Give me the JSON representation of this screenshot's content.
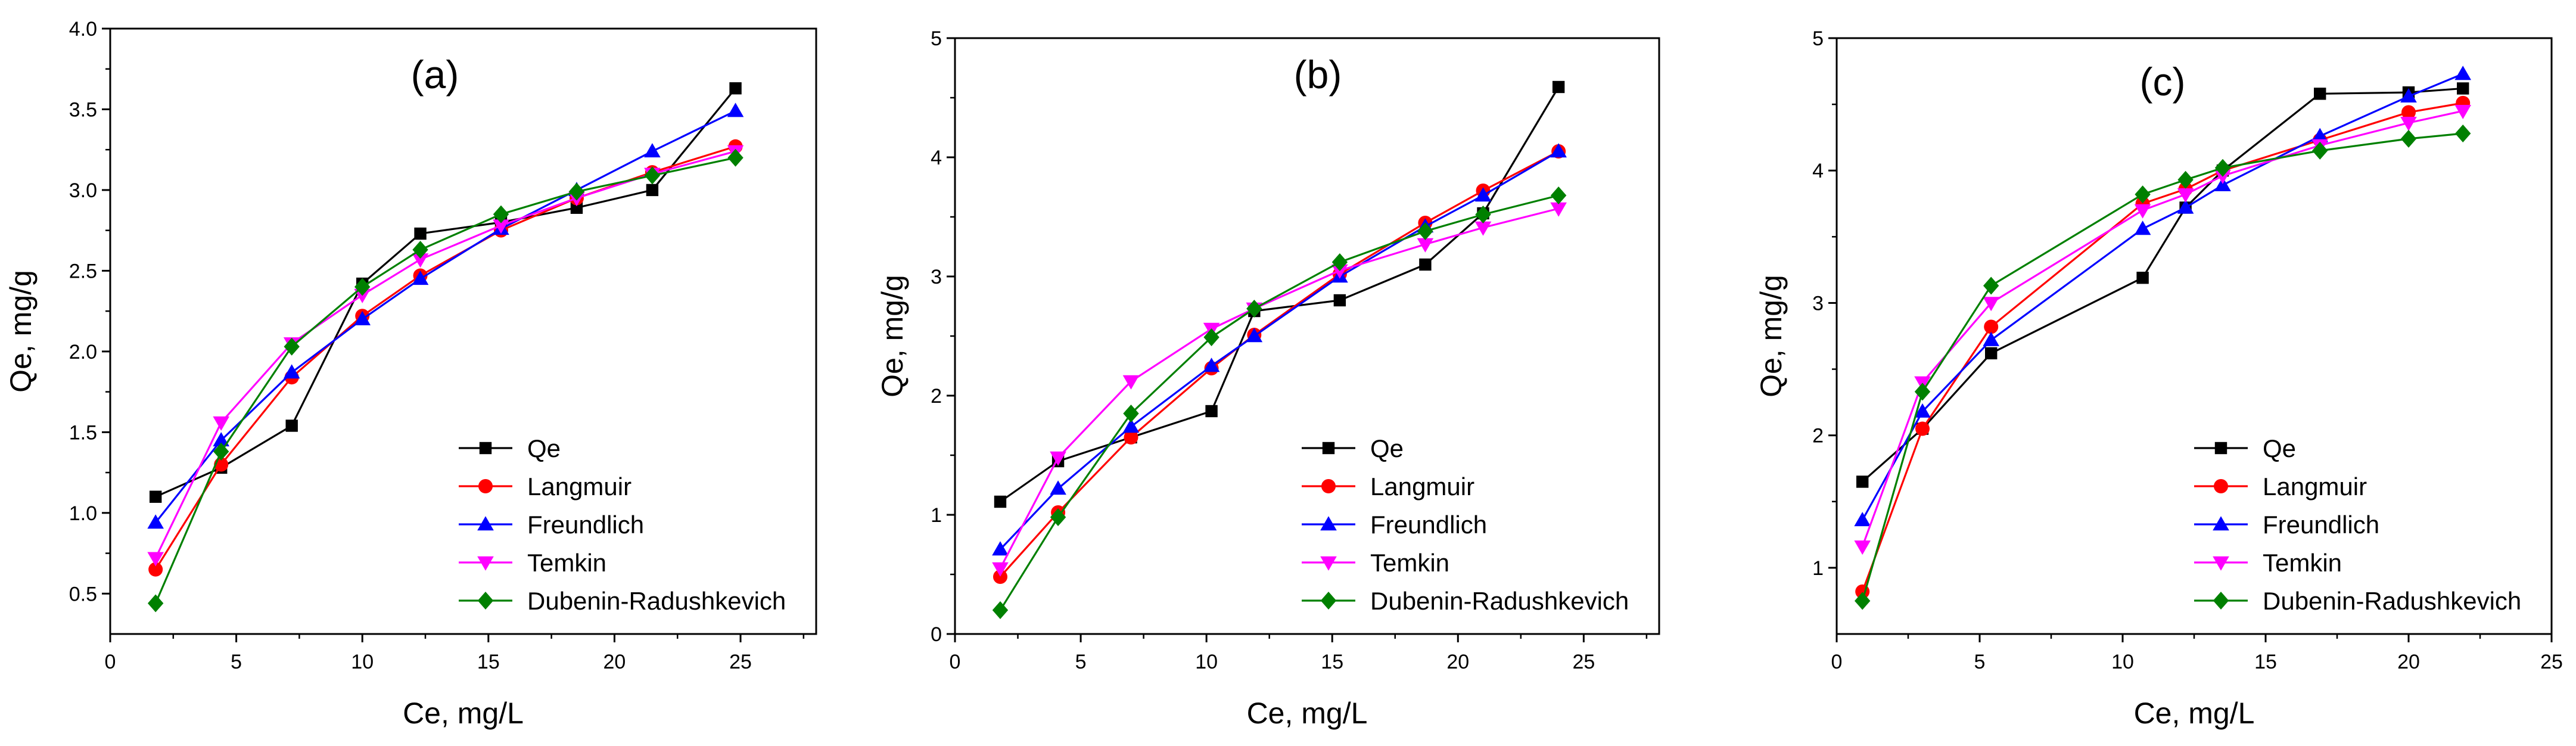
{
  "figure": {
    "panel_count": 3
  },
  "chart_data": [
    {
      "type": "line",
      "panel_label": "(a)",
      "title": "",
      "xlabel": "Ce, mg/L",
      "ylabel": "Qe, mg/g",
      "xlim": [
        0,
        28
      ],
      "ylim": [
        0.25,
        4.0
      ],
      "xticks": [
        0,
        5,
        10,
        15,
        20,
        25
      ],
      "yticks": [
        0.5,
        1.0,
        1.5,
        2.0,
        2.5,
        3.0,
        3.5,
        4.0
      ],
      "ytick_labels": [
        "0.5",
        "1.0",
        "1.5",
        "2.0",
        "2.5",
        "3.0",
        "3.5",
        "4.0"
      ],
      "legend_position": "bottom-right",
      "x": [
        1.8,
        4.4,
        7.2,
        10.0,
        12.3,
        15.5,
        18.5,
        21.5,
        24.8
      ],
      "series": [
        {
          "name": "Qe",
          "color": "#000000",
          "marker": "square",
          "values": [
            1.1,
            1.28,
            1.54,
            2.42,
            2.73,
            2.8,
            2.89,
            3.0,
            3.63
          ]
        },
        {
          "name": "Langmuir",
          "color": "#ff0000",
          "marker": "circle",
          "values": [
            0.65,
            1.3,
            1.84,
            2.22,
            2.47,
            2.75,
            2.95,
            3.11,
            3.27
          ]
        },
        {
          "name": "Freundlich",
          "color": "#0000ff",
          "marker": "triangle-up",
          "values": [
            0.94,
            1.45,
            1.87,
            2.2,
            2.45,
            2.76,
            3.0,
            3.24,
            3.49
          ]
        },
        {
          "name": "Temkin",
          "color": "#ff00ff",
          "marker": "triangle-down",
          "values": [
            0.72,
            1.56,
            2.05,
            2.35,
            2.57,
            2.78,
            2.95,
            3.1,
            3.24
          ]
        },
        {
          "name": "Dubenin-Radushkevich",
          "color": "#008000",
          "marker": "diamond",
          "values": [
            0.44,
            1.38,
            2.03,
            2.4,
            2.63,
            2.85,
            2.99,
            3.09,
            3.2
          ]
        }
      ]
    },
    {
      "type": "line",
      "panel_label": "(b)",
      "title": "",
      "xlabel": "Ce, mg/L",
      "ylabel": "Qe, mg/g",
      "xlim": [
        0,
        28
      ],
      "ylim": [
        0,
        5
      ],
      "xticks": [
        0,
        5,
        10,
        15,
        20,
        25
      ],
      "yticks": [
        0,
        1,
        2,
        3,
        4,
        5
      ],
      "ytick_labels": [
        "0",
        "1",
        "2",
        "3",
        "4",
        "5"
      ],
      "legend_position": "bottom-right",
      "x": [
        1.8,
        4.1,
        7.0,
        10.2,
        11.9,
        15.3,
        18.7,
        21.0,
        24.0
      ],
      "series": [
        {
          "name": "Qe",
          "color": "#000000",
          "marker": "square",
          "values": [
            1.11,
            1.45,
            1.65,
            1.87,
            2.71,
            2.8,
            3.1,
            3.53,
            4.59
          ]
        },
        {
          "name": "Langmuir",
          "color": "#ff0000",
          "marker": "circle",
          "values": [
            0.48,
            1.02,
            1.65,
            2.23,
            2.51,
            3.02,
            3.45,
            3.72,
            4.05
          ]
        },
        {
          "name": "Freundlich",
          "color": "#0000ff",
          "marker": "triangle-up",
          "values": [
            0.71,
            1.22,
            1.74,
            2.25,
            2.5,
            3.0,
            3.42,
            3.68,
            4.05
          ]
        },
        {
          "name": "Temkin",
          "color": "#ff00ff",
          "marker": "triangle-down",
          "values": [
            0.55,
            1.48,
            2.12,
            2.56,
            2.73,
            3.05,
            3.27,
            3.41,
            3.57
          ]
        },
        {
          "name": "Dubenin-Radushkevich",
          "color": "#008000",
          "marker": "diamond",
          "values": [
            0.2,
            0.98,
            1.85,
            2.49,
            2.73,
            3.12,
            3.38,
            3.52,
            3.68
          ]
        }
      ]
    },
    {
      "type": "line",
      "panel_label": "(c)",
      "title": "",
      "xlabel": "Ce, mg/L",
      "ylabel": "Qe, mg/g",
      "xlim": [
        0,
        25
      ],
      "ylim": [
        0.5,
        5.0
      ],
      "xticks": [
        0,
        5,
        10,
        15,
        20,
        25
      ],
      "yticks": [
        1,
        2,
        3,
        4,
        5
      ],
      "ytick_labels": [
        "1",
        "2",
        "3",
        "4",
        "5"
      ],
      "legend_position": "bottom-right",
      "x": [
        0.9,
        3.0,
        5.4,
        10.7,
        12.2,
        13.5,
        16.9,
        20.0,
        21.9
      ],
      "series": [
        {
          "name": "Qe",
          "color": "#000000",
          "marker": "square",
          "values": [
            1.65,
            2.05,
            2.62,
            3.19,
            3.72,
            4.0,
            4.58,
            4.59,
            4.62
          ]
        },
        {
          "name": "Langmuir",
          "color": "#ff0000",
          "marker": "circle",
          "values": [
            0.82,
            2.05,
            2.82,
            3.75,
            3.86,
            4.0,
            4.23,
            4.44,
            4.51
          ]
        },
        {
          "name": "Freundlich",
          "color": "#0000ff",
          "marker": "triangle-up",
          "values": [
            1.36,
            2.18,
            2.72,
            3.56,
            3.72,
            3.89,
            4.26,
            4.56,
            4.73
          ]
        },
        {
          "name": "Temkin",
          "color": "#ff00ff",
          "marker": "triangle-down",
          "values": [
            1.16,
            2.4,
            3.0,
            3.7,
            3.82,
            3.96,
            4.19,
            4.36,
            4.45
          ]
        },
        {
          "name": "Dubenin-Radushkevich",
          "color": "#008000",
          "marker": "diamond",
          "values": [
            0.75,
            2.33,
            3.13,
            3.82,
            3.93,
            4.02,
            4.15,
            4.24,
            4.28
          ]
        }
      ]
    }
  ]
}
